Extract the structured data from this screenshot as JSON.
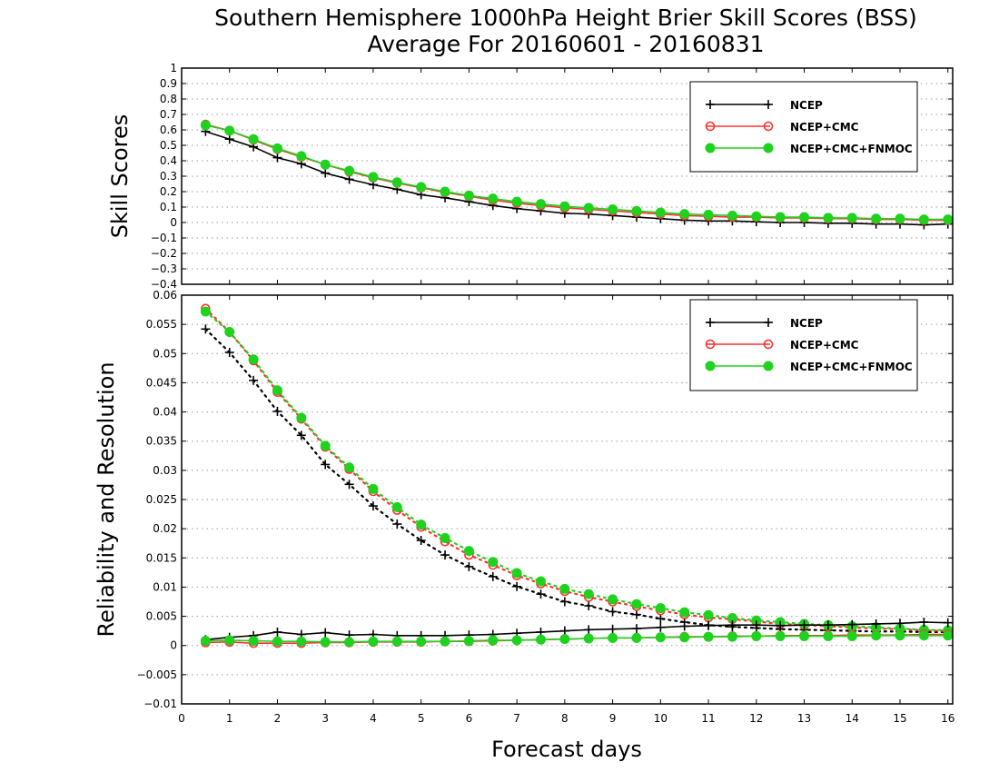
{
  "chart_data": {
    "type": "line",
    "title": [
      "Southern Hemisphere 1000hPa Height Brier Skill Scores (BSS)",
      "Average For 20160601 - 20160831"
    ],
    "xlabel": "Forecast days",
    "x_ticks": [
      0,
      1,
      2,
      3,
      4,
      5,
      6,
      7,
      8,
      9,
      10,
      11,
      12,
      13,
      14,
      15,
      16
    ],
    "x": [
      0.5,
      1,
      1.5,
      2,
      2.5,
      3,
      3.5,
      4,
      4.5,
      5,
      5.5,
      6,
      6.5,
      7,
      7.5,
      8,
      8.5,
      9,
      9.5,
      10,
      10.5,
      11,
      11.5,
      12,
      12.5,
      13,
      13.5,
      14,
      14.5,
      15,
      15.5,
      16
    ],
    "xlim": [
      0,
      16.1
    ],
    "grid": true,
    "colors": {
      "NCEP": "#000000",
      "NCEP+CMC": "#ff3030",
      "NCEP+CMC+FNMOC": "#1ed21e"
    },
    "panels": [
      {
        "ylabel": "Skill Scores",
        "ylim": [
          -0.4,
          1
        ],
        "y_ticks": [
          "1",
          "0.9",
          "0.8",
          "0.7",
          "0.6",
          "0.5",
          "0.4",
          "0.3",
          "0.2",
          "0.1",
          "0",
          "−0.1",
          "−0.2",
          "−0.3",
          "−0.4"
        ],
        "y_tick_values": [
          1,
          0.9,
          0.8,
          0.7,
          0.6,
          0.5,
          0.4,
          0.3,
          0.2,
          0.1,
          0,
          -0.1,
          -0.2,
          -0.3,
          -0.4
        ],
        "legend": [
          "NCEP",
          "NCEP+CMC",
          "NCEP+CMC+FNMOC"
        ],
        "legend_position": "top-right",
        "series": [
          {
            "name": "NCEP",
            "marker": "plus",
            "style": "solid",
            "values": [
              0.59,
              0.54,
              0.49,
              0.42,
              0.38,
              0.32,
              0.28,
              0.245,
              0.215,
              0.18,
              0.16,
              0.135,
              0.11,
              0.09,
              0.075,
              0.06,
              0.055,
              0.045,
              0.035,
              0.025,
              0.015,
              0.01,
              0.01,
              0.005,
              0,
              0,
              -0.005,
              -0.005,
              -0.01,
              -0.01,
              -0.015,
              -0.01
            ]
          },
          {
            "name": "NCEP+CMC",
            "marker": "open-circle",
            "style": "solid",
            "values": [
              0.635,
              0.595,
              0.535,
              0.475,
              0.425,
              0.375,
              0.33,
              0.29,
              0.255,
              0.225,
              0.195,
              0.17,
              0.145,
              0.125,
              0.11,
              0.095,
              0.085,
              0.075,
              0.065,
              0.055,
              0.045,
              0.04,
              0.035,
              0.035,
              0.03,
              0.03,
              0.025,
              0.025,
              0.02,
              0.02,
              0.015,
              0.015
            ]
          },
          {
            "name": "NCEP+CMC+FNMOC",
            "marker": "filled-circle",
            "style": "solid",
            "values": [
              0.63,
              0.595,
              0.54,
              0.48,
              0.43,
              0.375,
              0.335,
              0.295,
              0.26,
              0.23,
              0.2,
              0.175,
              0.155,
              0.135,
              0.12,
              0.105,
              0.095,
              0.085,
              0.075,
              0.065,
              0.055,
              0.05,
              0.045,
              0.04,
              0.035,
              0.035,
              0.03,
              0.03,
              0.025,
              0.025,
              0.02,
              0.02
            ]
          }
        ]
      },
      {
        "ylabel": "Reliability and Resolution",
        "ylim": [
          -0.01,
          0.06
        ],
        "y_ticks": [
          "0.06",
          "0.055",
          "0.05",
          "0.045",
          "0.04",
          "0.035",
          "0.03",
          "0.025",
          "0.02",
          "0.015",
          "0.01",
          "0.005",
          "0",
          "−0.005",
          "−0.01"
        ],
        "y_tick_values": [
          0.06,
          0.055,
          0.05,
          0.045,
          0.04,
          0.035,
          0.03,
          0.025,
          0.02,
          0.015,
          0.01,
          0.005,
          0,
          -0.005,
          -0.01
        ],
        "legend": [
          "NCEP",
          "NCEP+CMC",
          "NCEP+CMC+FNMOC"
        ],
        "legend_position": "top-right",
        "series": [
          {
            "name": "NCEP",
            "marker": "plus",
            "style": "dotted",
            "role": "resolution",
            "values": [
              0.0542,
              0.0502,
              0.0454,
              0.0401,
              0.036,
              0.031,
              0.0276,
              0.0239,
              0.0208,
              0.018,
              0.0155,
              0.0135,
              0.0118,
              0.0101,
              0.0088,
              0.0075,
              0.0068,
              0.0058,
              0.0053,
              0.0046,
              0.004,
              0.0035,
              0.0032,
              0.003,
              0.0028,
              0.0027,
              0.0026,
              0.0025,
              0.0024,
              0.0024,
              0.0023,
              0.0023
            ]
          },
          {
            "name": "NCEP+CMC",
            "marker": "open-circle",
            "style": "dotted",
            "role": "resolution",
            "values": [
              0.0577,
              0.0537,
              0.0488,
              0.0434,
              0.0388,
              0.034,
              0.0302,
              0.0264,
              0.0232,
              0.0203,
              0.0178,
              0.0155,
              0.0138,
              0.012,
              0.0106,
              0.0093,
              0.0083,
              0.0075,
              0.0067,
              0.006,
              0.0053,
              0.0048,
              0.0045,
              0.0041,
              0.0037,
              0.0035,
              0.0033,
              0.0031,
              0.0029,
              0.0028,
              0.0026,
              0.0025
            ]
          },
          {
            "name": "NCEP+CMC+FNMOC",
            "marker": "filled-circle",
            "style": "dotted",
            "role": "resolution",
            "values": [
              0.0572,
              0.0537,
              0.049,
              0.0437,
              0.039,
              0.0342,
              0.0305,
              0.0268,
              0.0237,
              0.0207,
              0.0184,
              0.0162,
              0.0143,
              0.0124,
              0.011,
              0.0097,
              0.0088,
              0.0079,
              0.0071,
              0.0064,
              0.0057,
              0.0052,
              0.0047,
              0.0043,
              0.004,
              0.0037,
              0.0035,
              0.0033,
              0.0031,
              0.0029,
              0.0027,
              0.0026
            ]
          },
          {
            "name": "NCEP",
            "marker": "plus",
            "style": "solid",
            "role": "reliability",
            "values": [
              0.001,
              0.0014,
              0.0017,
              0.0023,
              0.0019,
              0.0022,
              0.0018,
              0.0019,
              0.0017,
              0.0017,
              0.0017,
              0.0018,
              0.0019,
              0.0021,
              0.0023,
              0.0025,
              0.0027,
              0.0028,
              0.0029,
              0.0031,
              0.0033,
              0.0034,
              0.0035,
              0.0035,
              0.0034,
              0.0035,
              0.0035,
              0.0036,
              0.0037,
              0.0038,
              0.004,
              0.0039
            ]
          },
          {
            "name": "NCEP+CMC",
            "marker": "open-circle",
            "style": "solid",
            "role": "reliability",
            "values": [
              0.0005,
              0.0006,
              0.0004,
              0.0004,
              0.0004,
              0.0005,
              0.0005,
              0.0006,
              0.0006,
              0.0006,
              0.0007,
              0.0007,
              0.0008,
              0.0009,
              0.001,
              0.0011,
              0.0012,
              0.0013,
              0.0013,
              0.0014,
              0.0015,
              0.0015,
              0.0016,
              0.0016,
              0.0017,
              0.0017,
              0.0017,
              0.0018,
              0.0018,
              0.0018,
              0.0019,
              0.0019
            ]
          },
          {
            "name": "NCEP+CMC+FNMOC",
            "marker": "filled-circle",
            "style": "solid",
            "role": "reliability",
            "values": [
              0.0008,
              0.0009,
              0.0008,
              0.0007,
              0.0007,
              0.0006,
              0.0006,
              0.0007,
              0.0007,
              0.0007,
              0.0007,
              0.0008,
              0.0009,
              0.0009,
              0.001,
              0.0011,
              0.0012,
              0.0013,
              0.0013,
              0.0014,
              0.0014,
              0.0015,
              0.0015,
              0.0016,
              0.0016,
              0.0016,
              0.0016,
              0.0016,
              0.0017,
              0.0017,
              0.0017,
              0.0017
            ]
          }
        ]
      }
    ]
  }
}
